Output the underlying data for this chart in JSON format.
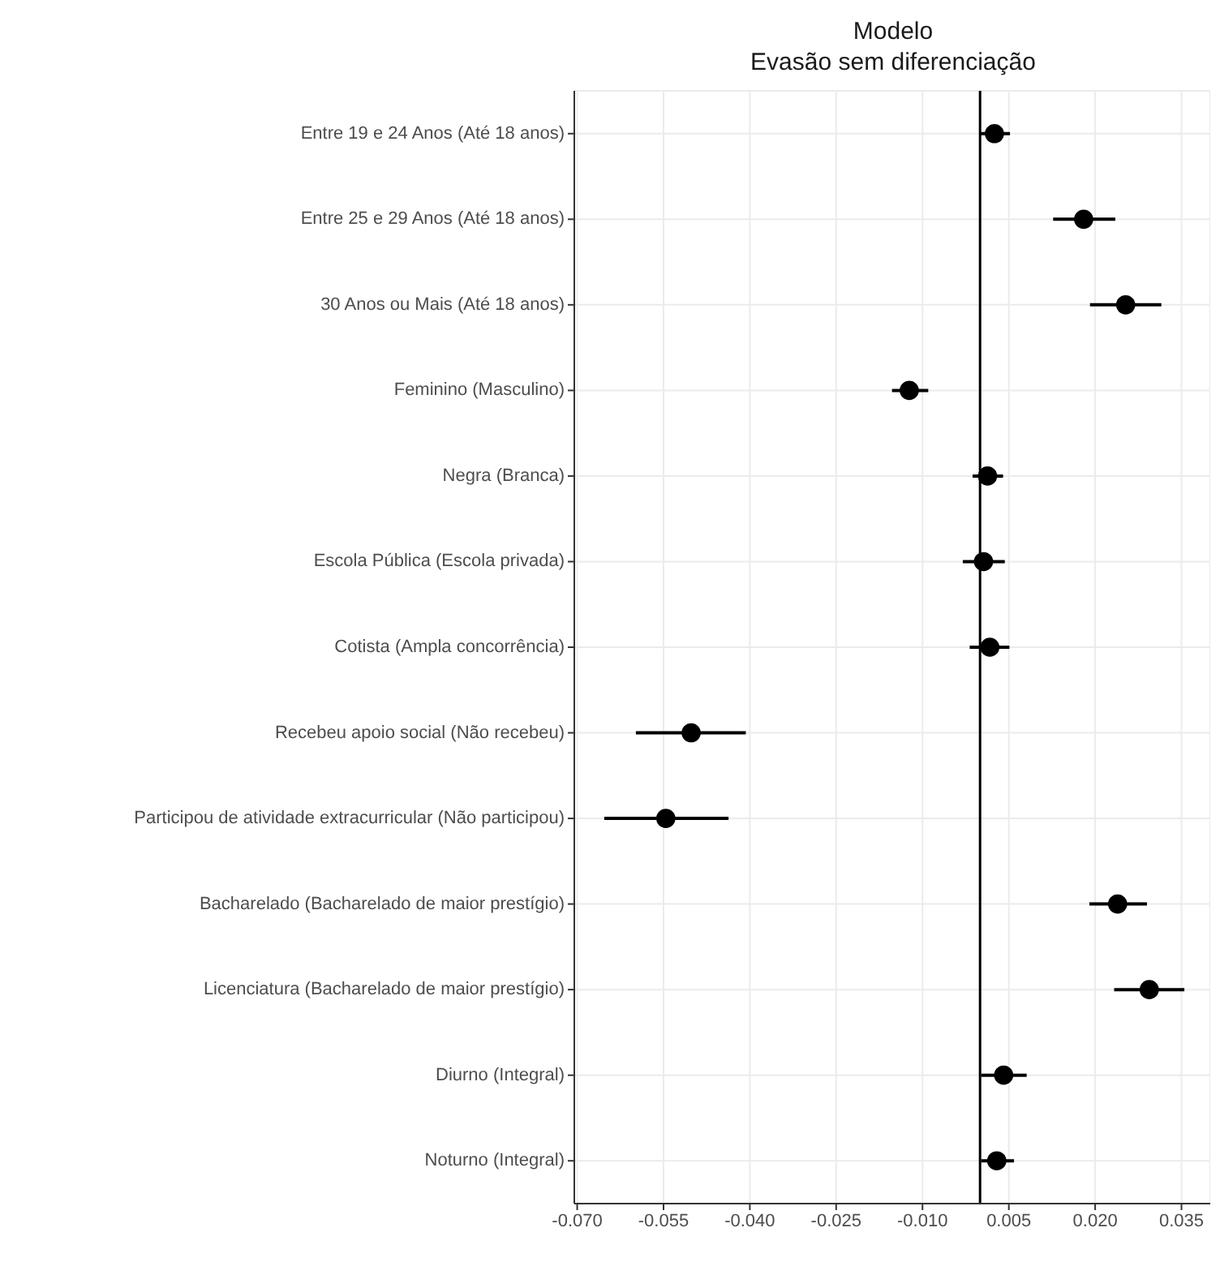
{
  "chart_data": {
    "type": "scatter",
    "title": "Modelo",
    "subtitle": "Evasão sem diferenciação",
    "categories": [
      "Entre 19 e 24 Anos (Até 18 anos)",
      "Entre 25 e 29 Anos (Até 18 anos)",
      "30 Anos ou Mais (Até 18 anos)",
      "Feminino (Masculino)",
      "Negra (Branca)",
      "Escola Pública (Escola privada)",
      "Cotista (Ampla concorrência)",
      "Recebeu apoio social (Não recebeu)",
      "Participou de atividade extracurricular (Não participou)",
      "Bacharelado (Bacharelado de maior prestígio)",
      "Licenciatura (Bacharelado de maior prestígio)",
      "Diurno (Integral)",
      "Noturno (Integral)"
    ],
    "orientation": "horizontal",
    "values": [
      0.0025,
      0.018,
      0.0253,
      -0.0123,
      0.0013,
      0.0006,
      0.0017,
      -0.0502,
      -0.0546,
      0.0239,
      0.0294,
      0.0041,
      0.0029
    ],
    "errors": [
      [
        -0.0001,
        0.0052
      ],
      [
        0.0127,
        0.0235
      ],
      [
        0.0191,
        0.0315
      ],
      [
        -0.0153,
        -0.009
      ],
      [
        -0.0013,
        0.004
      ],
      [
        -0.003,
        0.0043
      ],
      [
        -0.0018,
        0.0051
      ],
      [
        -0.0598,
        -0.0407
      ],
      [
        -0.0653,
        -0.0437
      ],
      [
        0.019,
        0.029
      ],
      [
        0.0233,
        0.0355
      ],
      [
        0.0002,
        0.0081
      ],
      [
        0.0002,
        0.0059
      ]
    ],
    "color": "#000000",
    "xlim": [
      -0.0705,
      0.04
    ],
    "xticks": [
      {
        "value": -0.07,
        "label": "-0.070"
      },
      {
        "value": -0.055,
        "label": "-0.055"
      },
      {
        "value": -0.04,
        "label": "-0.040"
      },
      {
        "value": -0.025,
        "label": "-0.025"
      },
      {
        "value": -0.01,
        "label": "-0.010"
      },
      {
        "value": 0.005,
        "label": "0.005"
      },
      {
        "value": 0.02,
        "label": "0.020"
      },
      {
        "value": 0.035,
        "label": "0.035"
      }
    ],
    "ref_lines": [
      {
        "axis": "x",
        "value": 0,
        "color": "#000000"
      }
    ],
    "grid": true,
    "marker": "circle"
  }
}
